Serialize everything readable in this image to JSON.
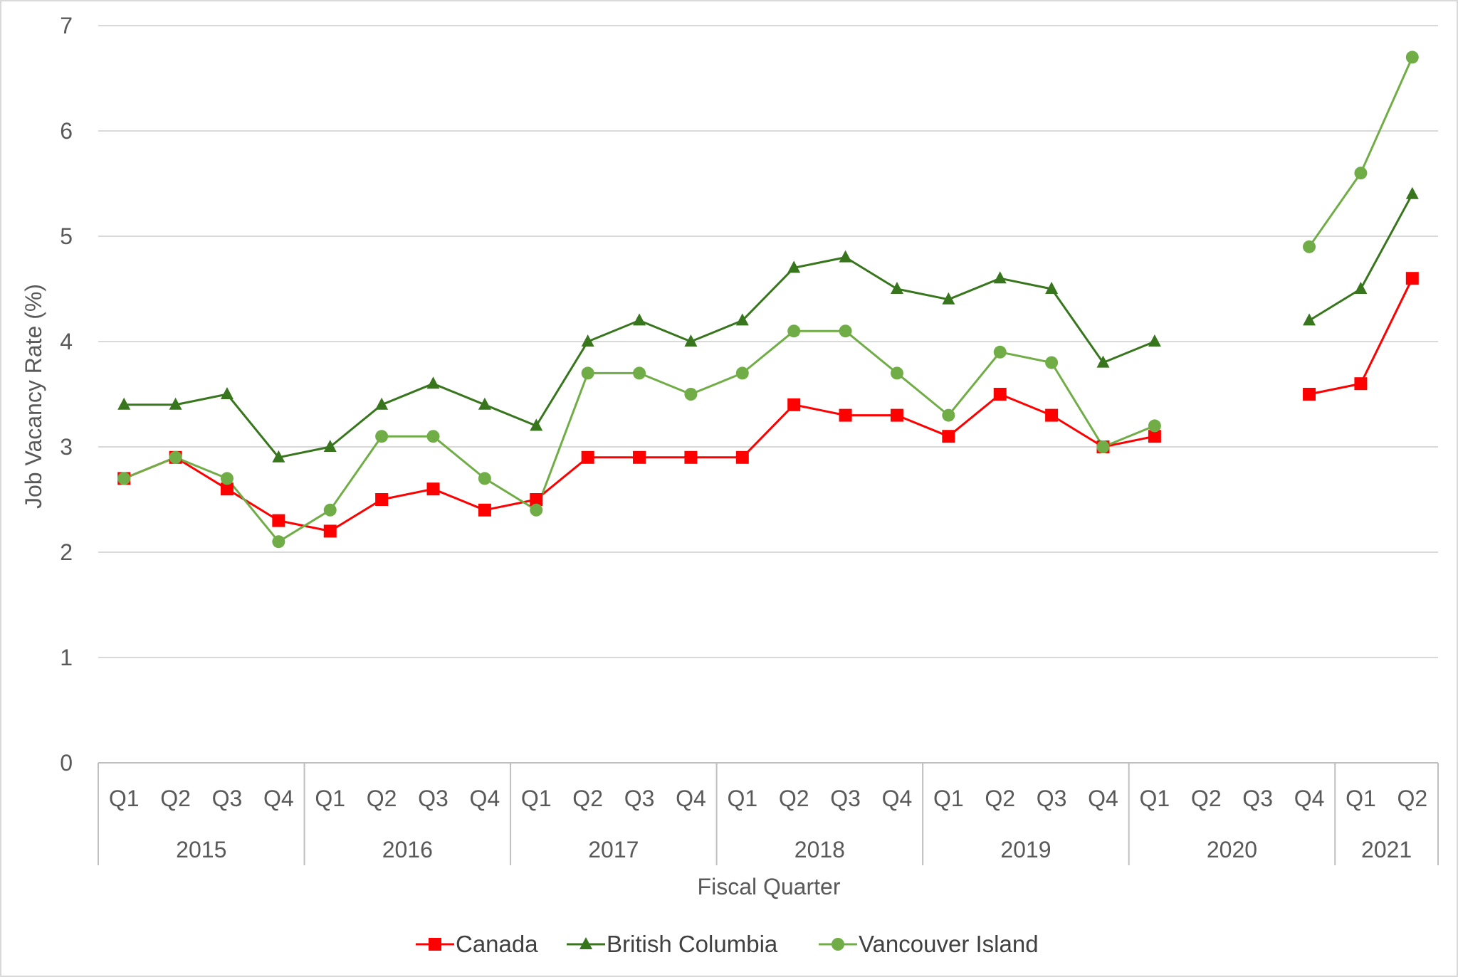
{
  "chart_data": {
    "type": "line",
    "title": "",
    "xlabel": "Fiscal Quarter",
    "ylabel": "Job Vacancy Rate (%)",
    "ylim": [
      0,
      7
    ],
    "yticks": [
      0,
      1,
      2,
      3,
      4,
      5,
      6,
      7
    ],
    "grid": true,
    "legend_position": "bottom",
    "categories": [
      {
        "year": "2015",
        "quarter": "Q1"
      },
      {
        "year": "2015",
        "quarter": "Q2"
      },
      {
        "year": "2015",
        "quarter": "Q3"
      },
      {
        "year": "2015",
        "quarter": "Q4"
      },
      {
        "year": "2016",
        "quarter": "Q1"
      },
      {
        "year": "2016",
        "quarter": "Q2"
      },
      {
        "year": "2016",
        "quarter": "Q3"
      },
      {
        "year": "2016",
        "quarter": "Q4"
      },
      {
        "year": "2017",
        "quarter": "Q1"
      },
      {
        "year": "2017",
        "quarter": "Q2"
      },
      {
        "year": "2017",
        "quarter": "Q3"
      },
      {
        "year": "2017",
        "quarter": "Q4"
      },
      {
        "year": "2018",
        "quarter": "Q1"
      },
      {
        "year": "2018",
        "quarter": "Q2"
      },
      {
        "year": "2018",
        "quarter": "Q3"
      },
      {
        "year": "2018",
        "quarter": "Q4"
      },
      {
        "year": "2019",
        "quarter": "Q1"
      },
      {
        "year": "2019",
        "quarter": "Q2"
      },
      {
        "year": "2019",
        "quarter": "Q3"
      },
      {
        "year": "2019",
        "quarter": "Q4"
      },
      {
        "year": "2020",
        "quarter": "Q1"
      },
      {
        "year": "2020",
        "quarter": "Q2"
      },
      {
        "year": "2020",
        "quarter": "Q3"
      },
      {
        "year": "2020",
        "quarter": "Q4"
      },
      {
        "year": "2021",
        "quarter": "Q1"
      },
      {
        "year": "2021",
        "quarter": "Q2"
      }
    ],
    "years": [
      "2015",
      "2016",
      "2017",
      "2018",
      "2019",
      "2020",
      "2021"
    ],
    "series": [
      {
        "name": "Canada",
        "color": "#ff0000",
        "marker": "square",
        "values": [
          2.7,
          2.9,
          2.6,
          2.3,
          2.2,
          2.5,
          2.6,
          2.4,
          2.5,
          2.9,
          2.9,
          2.9,
          2.9,
          3.4,
          3.3,
          3.3,
          3.1,
          3.5,
          3.3,
          3.0,
          3.1,
          null,
          null,
          3.5,
          3.6,
          4.6
        ]
      },
      {
        "name": "British Columbia",
        "color": "#38761d",
        "marker": "triangle",
        "values": [
          3.4,
          3.4,
          3.5,
          2.9,
          3.0,
          3.4,
          3.6,
          3.4,
          3.2,
          4.0,
          4.2,
          4.0,
          4.2,
          4.7,
          4.8,
          4.5,
          4.4,
          4.6,
          4.5,
          3.8,
          4.0,
          null,
          null,
          4.2,
          4.5,
          5.4
        ]
      },
      {
        "name": "Vancouver Island",
        "color": "#70ad47",
        "marker": "circle",
        "values": [
          2.7,
          2.9,
          2.7,
          2.1,
          2.4,
          3.1,
          3.1,
          2.7,
          2.4,
          3.7,
          3.7,
          3.5,
          3.7,
          4.1,
          4.1,
          3.7,
          3.3,
          3.9,
          3.8,
          3.0,
          3.2,
          null,
          null,
          4.9,
          5.6,
          6.7
        ]
      }
    ]
  }
}
